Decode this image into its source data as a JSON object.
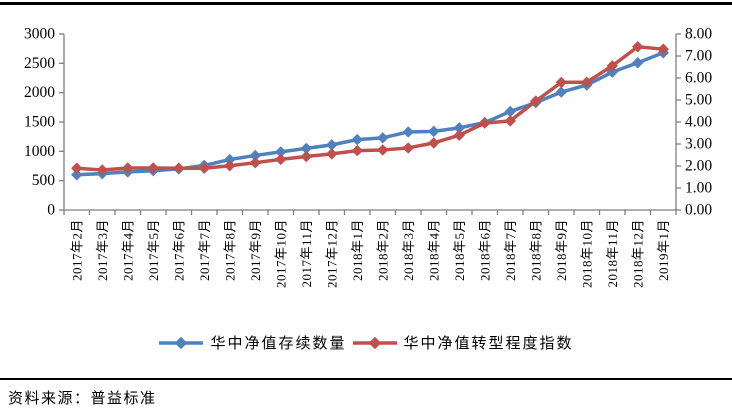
{
  "chart_data": {
    "type": "line",
    "categories": [
      "2017年2月",
      "2017年3月",
      "2017年4月",
      "2017年5月",
      "2017年6月",
      "2017年7月",
      "2017年8月",
      "2017年9月",
      "2017年10月",
      "2017年11月",
      "2017年12月",
      "2018年1月",
      "2018年2月",
      "2018年3月",
      "2018年4月",
      "2018年5月",
      "2018年6月",
      "2018年7月",
      "2018年8月",
      "2018年9月",
      "2018年10月",
      "2018年11月",
      "2018年12月",
      "2019年1月"
    ],
    "series": [
      {
        "name": "华中净值存续数量",
        "axis": "left",
        "color": "#4f81bd",
        "marker": "diamond",
        "values": [
          600,
          620,
          650,
          670,
          700,
          760,
          860,
          930,
          990,
          1050,
          1110,
          1200,
          1230,
          1330,
          1340,
          1400,
          1490,
          1680,
          1830,
          2010,
          2130,
          2350,
          2510,
          2680
        ]
      },
      {
        "name": "华中净值转型程度指数",
        "axis": "right",
        "color": "#c0504d",
        "marker": "diamond",
        "values": [
          1.9,
          1.82,
          1.91,
          1.91,
          1.9,
          1.9,
          2.01,
          2.15,
          2.3,
          2.43,
          2.55,
          2.7,
          2.73,
          2.82,
          3.05,
          3.4,
          3.95,
          4.05,
          4.95,
          5.8,
          5.81,
          6.55,
          7.42,
          7.31
        ]
      }
    ],
    "left_axis": {
      "min": 0,
      "max": 3000,
      "step": 500,
      "decimals": 0
    },
    "right_axis": {
      "min": 0,
      "max": 8,
      "step": 1,
      "decimals": 2
    },
    "grid": false,
    "legend_position": "bottom",
    "axis_color": "#7f7f7f",
    "text_color": "#000000"
  },
  "source": {
    "label": "资料来源：普益标准"
  }
}
